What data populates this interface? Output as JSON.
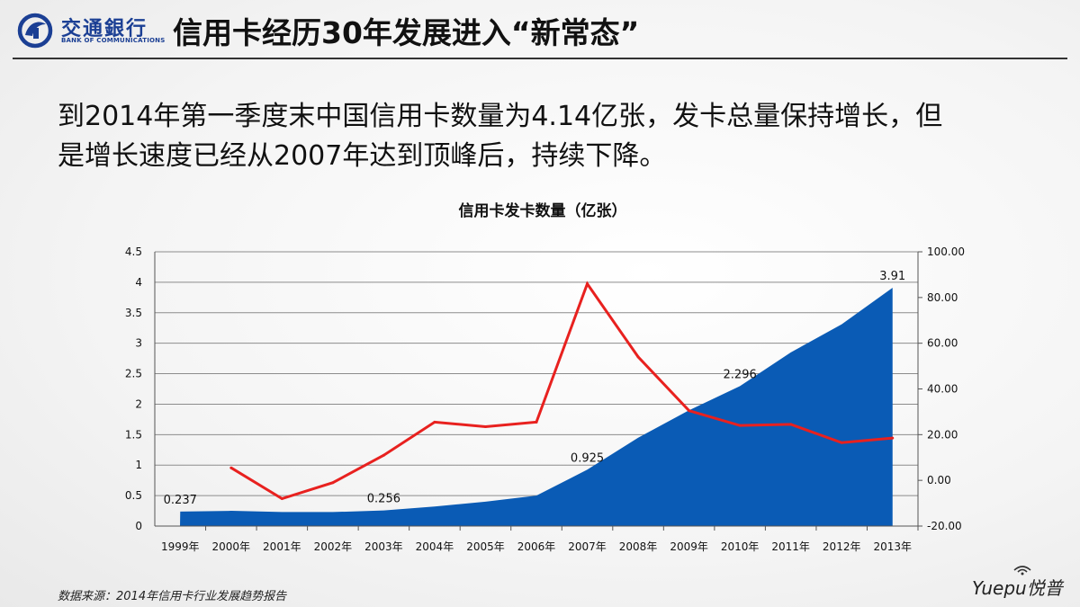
{
  "header": {
    "logo_cn": "交通銀行",
    "logo_en": "BANK OF COMMUNICATIONS",
    "title": "信用卡经历30年发展进入“新常态”"
  },
  "body": {
    "line1": "到2014年第一季度末中国信用卡数量为4.14亿张，发卡总量保持增长，但",
    "line2": "是增长速度已经从2007年达到顶峰后，持续下降。"
  },
  "footer": {
    "source": "数据来源：2014年信用卡行业发展趋势报告",
    "brand": "Yuepu悦普"
  },
  "colors": {
    "area": "#0a5bb5",
    "line": "#e8211f",
    "logo": "#1b3f94"
  },
  "chart_data": {
    "type": "area",
    "title": "信用卡发卡数量（亿张）",
    "categories": [
      "1999年",
      "2000年",
      "2001年",
      "2002年",
      "2003年",
      "2004年",
      "2005年",
      "2006年",
      "2007年",
      "2008年",
      "2009年",
      "2010年",
      "2011年",
      "2012年",
      "2013年"
    ],
    "series": [
      {
        "type": "area",
        "axis": "left",
        "values": [
          0.237,
          0.25,
          0.23,
          0.23,
          0.256,
          0.32,
          0.4,
          0.5,
          0.925,
          1.45,
          1.9,
          2.296,
          2.85,
          3.31,
          3.91
        ]
      },
      {
        "type": "line",
        "axis": "right",
        "values": [
          null,
          5.5,
          -8,
          -1,
          11,
          25.5,
          23.5,
          25.5,
          86,
          54,
          30.5,
          24,
          24.5,
          16.5,
          18.5
        ]
      }
    ],
    "data_labels": [
      {
        "index": 0,
        "text": "0.237"
      },
      {
        "index": 4,
        "text": "0.256"
      },
      {
        "index": 8,
        "text": "0.925"
      },
      {
        "index": 11,
        "text": "2.296"
      },
      {
        "index": 14,
        "text": "3.91"
      }
    ],
    "y_left": {
      "min": 0,
      "max": 4.5,
      "ticks": [
        "0",
        "0.5",
        "1",
        "1.5",
        "2",
        "2.5",
        "3",
        "3.5",
        "4",
        "4.5"
      ]
    },
    "y_right": {
      "min": -20,
      "max": 100,
      "ticks": [
        "-20.00",
        "0.00",
        "20.00",
        "40.00",
        "60.00",
        "80.00",
        "100.00"
      ]
    },
    "grid": true
  }
}
